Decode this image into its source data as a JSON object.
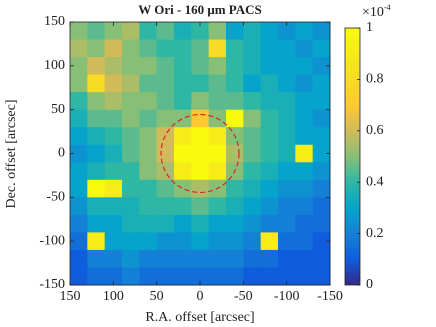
{
  "chart_data": {
    "type": "heatmap",
    "title": "W Ori - 160 μm PACS",
    "x_label": "R.A. offset [arcsec]",
    "y_label": "Dec. offset [arcsec]",
    "xlim": [
      150,
      -150
    ],
    "ylim": [
      -150,
      150
    ],
    "xticks": [
      150,
      100,
      50,
      0,
      -50,
      -100,
      -150
    ],
    "yticks": [
      150,
      100,
      50,
      0,
      -50,
      -100,
      -150
    ],
    "colormap": "parula",
    "clim": [
      0,
      1
    ],
    "cticks": [
      0,
      0.2,
      0.4,
      0.6,
      0.8,
      1
    ],
    "colorbar_scale_label": {
      "base": "×10",
      "exponent": "-4"
    },
    "z": [
      [
        0.5,
        0.45,
        0.5,
        0.55,
        0.4,
        0.45,
        0.35,
        0.4,
        0.5,
        0.3,
        0.35,
        0.3,
        0.25,
        0.3,
        0.25
      ],
      [
        0.55,
        0.5,
        0.6,
        0.5,
        0.45,
        0.4,
        0.4,
        0.45,
        0.8,
        0.4,
        0.35,
        0.3,
        0.3,
        0.25,
        0.3
      ],
      [
        0.5,
        0.6,
        0.55,
        0.5,
        0.5,
        0.45,
        0.4,
        0.45,
        0.5,
        0.4,
        0.35,
        0.3,
        0.3,
        0.3,
        0.25
      ],
      [
        0.5,
        0.8,
        0.6,
        0.55,
        0.45,
        0.45,
        0.4,
        0.4,
        0.45,
        0.4,
        0.3,
        0.35,
        0.3,
        0.25,
        0.3
      ],
      [
        0.4,
        0.5,
        0.55,
        0.5,
        0.5,
        0.45,
        0.4,
        0.5,
        0.45,
        0.45,
        0.4,
        0.35,
        0.35,
        0.3,
        0.3
      ],
      [
        0.35,
        0.45,
        0.45,
        0.5,
        0.45,
        0.5,
        0.5,
        0.7,
        0.5,
        1,
        0.5,
        0.4,
        0.35,
        0.3,
        0.25
      ],
      [
        0.3,
        0.35,
        0.4,
        0.45,
        0.5,
        0.6,
        0.9,
        1,
        0.9,
        0.5,
        0.45,
        0.4,
        0.35,
        0.3,
        0.3
      ],
      [
        0.25,
        0.3,
        0.35,
        0.45,
        0.5,
        0.6,
        1,
        1,
        1,
        0.55,
        0.45,
        0.4,
        0.35,
        0.9,
        0.3
      ],
      [
        0.3,
        0.35,
        0.4,
        0.4,
        0.5,
        0.55,
        0.9,
        1,
        0.9,
        0.5,
        0.4,
        0.35,
        0.3,
        0.3,
        0.25
      ],
      [
        0.3,
        1,
        0.9,
        0.4,
        0.4,
        0.45,
        0.5,
        0.55,
        0.5,
        0.4,
        0.35,
        0.3,
        0.25,
        0.25,
        0.2
      ],
      [
        0.25,
        0.35,
        0.35,
        0.35,
        0.4,
        0.4,
        0.4,
        0.45,
        0.4,
        0.35,
        0.3,
        0.25,
        0.2,
        0.2,
        0.15
      ],
      [
        0.2,
        0.3,
        0.3,
        0.35,
        0.35,
        0.35,
        0.3,
        0.35,
        0.3,
        0.3,
        0.25,
        0.2,
        0.2,
        0.15,
        0.15
      ],
      [
        0.15,
        0.9,
        0.3,
        0.3,
        0.3,
        0.25,
        0.25,
        0.3,
        0.25,
        0.25,
        0.2,
        0.9,
        0.15,
        0.15,
        0.1
      ],
      [
        0.1,
        0.2,
        0.2,
        0.25,
        0.2,
        0.2,
        0.2,
        0.2,
        0.2,
        0.2,
        0.15,
        0.15,
        0.1,
        0.1,
        0.1
      ],
      [
        0.1,
        0.15,
        0.15,
        0.2,
        0.15,
        0.15,
        0.15,
        0.15,
        0.15,
        0.15,
        0.1,
        0.1,
        0.1,
        0.1,
        0.1
      ]
    ]
  }
}
